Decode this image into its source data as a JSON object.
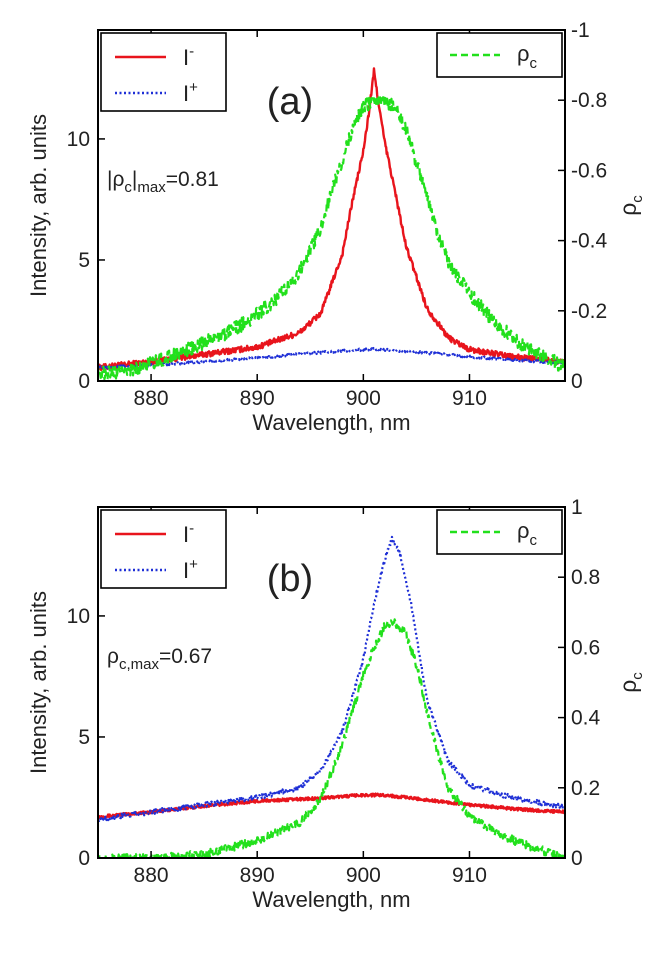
{
  "chart_data": [
    {
      "type": "line",
      "panel_label": "(a)",
      "xlabel": "Wavelength, nm",
      "ylabel": "Intensity, arb. units",
      "y2label": "ρc",
      "xlim": [
        875,
        919
      ],
      "ylim": [
        0,
        14.5
      ],
      "y2lim": [
        0,
        -1
      ],
      "xticks": [
        880,
        890,
        900,
        910
      ],
      "yticks": [
        0,
        5,
        10
      ],
      "y2ticks": [
        0,
        -0.2,
        -0.4,
        -0.6,
        -0.8,
        -1
      ],
      "y2tick_labels": [
        "0",
        "-0.2",
        "-0.4",
        "-0.6",
        "-0.8",
        "-1"
      ],
      "legend_left": [
        {
          "name": "I",
          "sup": "-",
          "color": "#e8141c",
          "style": "solid"
        },
        {
          "name": "I",
          "sup": "+",
          "color": "#1e2fd6",
          "style": "dotted"
        }
      ],
      "legend_right": [
        {
          "name": "ρ",
          "sub": "c",
          "color": "#22e01c",
          "style": "dashed"
        }
      ],
      "annotation": {
        "prefix": "|ρ",
        "sub": "c",
        "mid": "|",
        "sub2": "max",
        "suffix": "=0.81"
      },
      "series": [
        {
          "name": "I-",
          "axis": "left",
          "color": "#e8141c",
          "style": "solid",
          "noise": 0.12,
          "x": [
            875,
            880,
            885,
            890,
            894,
            896,
            898,
            899,
            900,
            900.5,
            901,
            901.5,
            902,
            903,
            904,
            906,
            908,
            910,
            914,
            919
          ],
          "y": [
            0.55,
            0.8,
            1.1,
            1.4,
            2.0,
            2.8,
            5.2,
            7.5,
            9.5,
            11.0,
            12.8,
            11.3,
            9.9,
            7.8,
            5.6,
            3.0,
            1.8,
            1.3,
            1.0,
            0.8
          ]
        },
        {
          "name": "I+",
          "axis": "left",
          "color": "#1e2fd6",
          "style": "dotted",
          "noise": 0.05,
          "x": [
            875,
            880,
            885,
            890,
            895,
            900,
            901,
            905,
            910,
            915,
            919
          ],
          "y": [
            0.55,
            0.65,
            0.8,
            0.95,
            1.15,
            1.3,
            1.32,
            1.2,
            1.0,
            0.85,
            0.75
          ]
        },
        {
          "name": "ρc",
          "axis": "right",
          "color": "#22e01c",
          "style": "dashed",
          "noise": 0.02,
          "x": [
            875,
            878,
            880,
            882,
            885,
            888,
            890,
            892,
            894,
            896,
            898,
            899,
            900,
            901,
            902,
            903,
            904,
            905,
            906,
            907,
            908,
            910,
            912,
            915,
            919
          ],
          "y": [
            -0.02,
            -0.03,
            -0.05,
            -0.07,
            -0.11,
            -0.15,
            -0.19,
            -0.24,
            -0.31,
            -0.44,
            -0.63,
            -0.72,
            -0.78,
            -0.8,
            -0.8,
            -0.78,
            -0.72,
            -0.62,
            -0.52,
            -0.42,
            -0.34,
            -0.25,
            -0.18,
            -0.1,
            -0.04
          ]
        }
      ]
    },
    {
      "type": "line",
      "panel_label": "(b)",
      "xlabel": "Wavelength, nm",
      "ylabel": "Intensity, arb. units",
      "y2label": "ρc",
      "xlim": [
        875,
        919
      ],
      "ylim": [
        0,
        14.5
      ],
      "y2lim": [
        0,
        1
      ],
      "xticks": [
        880,
        890,
        900,
        910
      ],
      "yticks": [
        0,
        5,
        10
      ],
      "y2ticks": [
        0,
        0.2,
        0.4,
        0.6,
        0.8,
        1
      ],
      "y2tick_labels": [
        "0",
        "0.2",
        "0.4",
        "0.6",
        "0.8",
        "1"
      ],
      "legend_left": [
        {
          "name": "I",
          "sup": "-",
          "color": "#e8141c",
          "style": "solid"
        },
        {
          "name": "I",
          "sup": "+",
          "color": "#1e2fd6",
          "style": "dotted"
        }
      ],
      "legend_right": [
        {
          "name": "ρ",
          "sub": "c",
          "color": "#22e01c",
          "style": "dashed"
        }
      ],
      "annotation": {
        "prefix": "ρ",
        "sub": "c,max",
        "mid": "",
        "sub2": "",
        "suffix": "=0.67"
      },
      "series": [
        {
          "name": "I-",
          "axis": "left",
          "color": "#e8141c",
          "style": "solid",
          "noise": 0.06,
          "x": [
            875,
            880,
            885,
            890,
            895,
            900,
            902,
            905,
            910,
            915,
            919
          ],
          "y": [
            1.7,
            1.9,
            2.15,
            2.35,
            2.45,
            2.6,
            2.6,
            2.45,
            2.2,
            2.0,
            1.9
          ]
        },
        {
          "name": "I+",
          "axis": "left",
          "color": "#1e2fd6",
          "style": "dotted",
          "noise": 0.1,
          "x": [
            875,
            880,
            885,
            890,
            894,
            896,
            898,
            900,
            901,
            902,
            902.7,
            903.5,
            904.5,
            906,
            908,
            910,
            914,
            919
          ],
          "y": [
            1.6,
            1.9,
            2.2,
            2.5,
            2.9,
            3.6,
            5.2,
            8.2,
            10.5,
            12.3,
            13.2,
            12.5,
            10.5,
            6.5,
            4.0,
            3.0,
            2.5,
            2.1
          ]
        },
        {
          "name": "ρc",
          "axis": "right",
          "color": "#22e01c",
          "style": "dashed",
          "noise": 0.012,
          "x": [
            875,
            880,
            885,
            890,
            894,
            896,
            898,
            900,
            901,
            902,
            903,
            904,
            905,
            906,
            907,
            908,
            910,
            912,
            915,
            919
          ],
          "y": [
            0.0,
            0.0,
            0.01,
            0.05,
            0.1,
            0.17,
            0.32,
            0.52,
            0.6,
            0.66,
            0.67,
            0.64,
            0.55,
            0.42,
            0.3,
            0.2,
            0.12,
            0.08,
            0.04,
            0.0
          ]
        }
      ]
    }
  ]
}
